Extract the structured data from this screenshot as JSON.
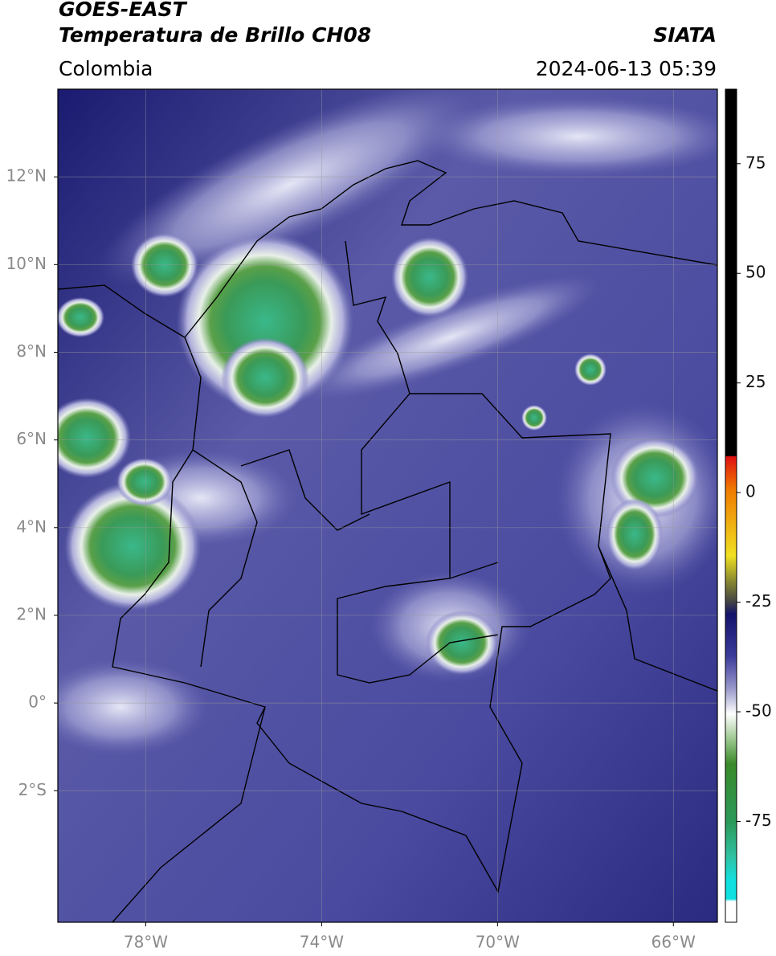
{
  "header": {
    "title": "GOES-EAST",
    "subtitle": "Temperatura de Brillo CH08",
    "source": "SIATA",
    "region": "Colombia",
    "datetime": "2024-06-13 05:39"
  },
  "map": {
    "xlim": [
      -80,
      -65
    ],
    "ylim": [
      -5,
      14
    ],
    "xticks": [
      {
        "value": -78,
        "label": "78°W"
      },
      {
        "value": -74,
        "label": "74°W"
      },
      {
        "value": -70,
        "label": "70°W"
      },
      {
        "value": -66,
        "label": "66°W"
      }
    ],
    "yticks": [
      {
        "value": 12,
        "label": "12°N"
      },
      {
        "value": 10,
        "label": "10°N"
      },
      {
        "value": 8,
        "label": "8°N"
      },
      {
        "value": 6,
        "label": "6°N"
      },
      {
        "value": 4,
        "label": "4°N"
      },
      {
        "value": 2,
        "label": "2°N"
      },
      {
        "value": 0,
        "label": "0°"
      },
      {
        "value": -2,
        "label": "2°S"
      }
    ],
    "grid": true
  },
  "colorbar": {
    "lim": [
      -98,
      92
    ],
    "ticks": [
      75,
      50,
      25,
      0,
      -25,
      -50,
      -75
    ]
  }
}
